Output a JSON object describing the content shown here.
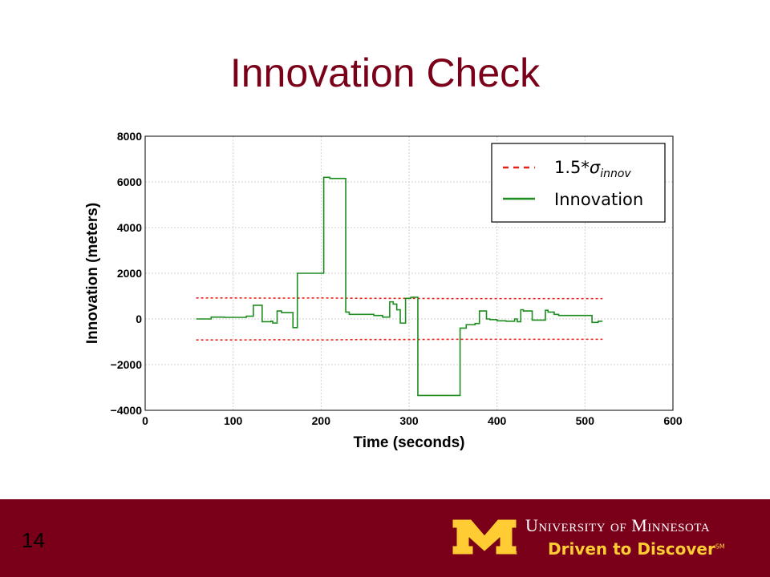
{
  "slide": {
    "title": "Innovation Check",
    "number": "14"
  },
  "branding": {
    "logo_icon": "gold-block-m-logo",
    "university": "University of Minnesota",
    "tagline": "Driven to Discover",
    "tagline_mark": "SM",
    "colors": {
      "maroon": "#7a0019",
      "gold": "#ffcc33"
    }
  },
  "chart_data": {
    "type": "line",
    "xlabel": "Time (seconds)",
    "ylabel": "Innovation (meters)",
    "xlim": [
      0,
      600
    ],
    "ylim": [
      -4000,
      8000
    ],
    "xticks": [
      "0",
      "100",
      "200",
      "300",
      "400",
      "500",
      "600"
    ],
    "yticks": [
      "8000",
      "6000",
      "4000",
      "2000",
      "0",
      "−2000",
      "−4000"
    ],
    "grid": true,
    "legend_position": "top-right",
    "series": [
      {
        "name": "1.5*σ_innov (upper)",
        "legend_label": "1.5*",
        "legend_sigma": "σ",
        "legend_sub": "innov",
        "style": "dashed",
        "color": "#e8201a",
        "x": [
          58,
          100,
          150,
          200,
          250,
          300,
          350,
          400,
          450,
          500,
          520
        ],
        "y": [
          920,
          920,
          910,
          920,
          900,
          900,
          890,
          890,
          890,
          890,
          890
        ]
      },
      {
        "name": "1.5*σ_innov (lower)",
        "style": "dashed",
        "color": "#e8201a",
        "x": [
          58,
          100,
          150,
          200,
          250,
          300,
          350,
          400,
          450,
          500,
          520
        ],
        "y": [
          -920,
          -920,
          -910,
          -920,
          -900,
          -900,
          -890,
          -890,
          -890,
          -890,
          -890
        ]
      },
      {
        "name": "Innovation",
        "legend_label": "Innovation",
        "style": "step",
        "color": "#1e8c1e",
        "x": [
          58,
          68,
          75,
          90,
          115,
          123,
          133,
          143,
          145,
          150,
          155,
          168,
          173,
          180,
          203,
          210,
          225,
          228,
          232,
          240,
          260,
          270,
          278,
          282,
          286,
          290,
          296,
          302,
          305,
          310,
          358,
          365,
          370,
          375,
          380,
          388,
          392,
          400,
          410,
          420,
          423,
          427,
          430,
          440,
          455,
          458,
          465,
          470,
          480,
          500,
          508,
          515,
          520
        ],
        "y": [
          0,
          0,
          80,
          70,
          120,
          600,
          -120,
          -100,
          -180,
          350,
          280,
          -380,
          2000,
          2000,
          6200,
          6150,
          6150,
          300,
          200,
          200,
          150,
          80,
          750,
          650,
          400,
          -180,
          900,
          950,
          950,
          -3350,
          -400,
          -250,
          -250,
          -200,
          350,
          0,
          -30,
          -80,
          -100,
          0,
          -120,
          400,
          350,
          -50,
          380,
          300,
          200,
          150,
          150,
          150,
          -150,
          -100,
          -100
        ]
      }
    ]
  }
}
